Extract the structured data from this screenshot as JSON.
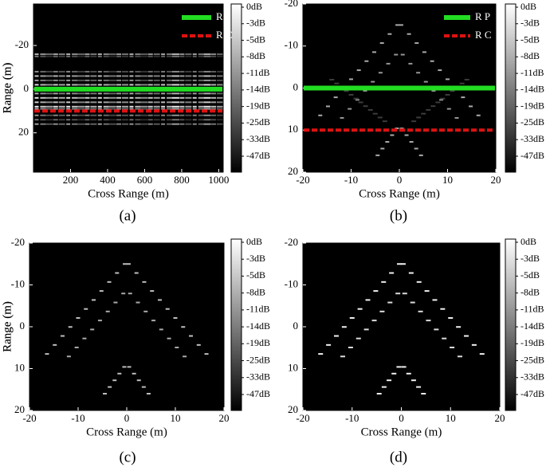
{
  "chart_data": [
    {
      "type": "image",
      "caption": "(a)",
      "x_label": "Cross Range (m)",
      "y_label": "Range (m)",
      "xlim": [
        0,
        1024
      ],
      "xticks": [
        200,
        400,
        600,
        800,
        1000
      ],
      "ylim": [
        -39,
        38
      ],
      "yticks": [
        -20,
        0,
        20
      ],
      "y_inverted": true,
      "colorbar_labels": [
        "0dB",
        "-3dB",
        "-5dB",
        "-8dB",
        "-11dB",
        "-14dB",
        "-19dB",
        "-25dB",
        "-33dB",
        "-47dB"
      ],
      "reference_lines": [
        {
          "name": "R P",
          "value": 0,
          "color": "#22dd22",
          "style": "solid"
        },
        {
          "name": "R C",
          "value": 10,
          "color": "#dd1111",
          "style": "dashed"
        }
      ]
    },
    {
      "type": "image",
      "caption": "(b)",
      "x_label": "Cross Range (m)",
      "y_label": "Range (m)",
      "xlim": [
        -20,
        20
      ],
      "xticks": [
        -20,
        -10,
        0,
        10,
        20
      ],
      "ylim": [
        -20,
        20
      ],
      "yticks": [
        -20,
        -10,
        0,
        10,
        20
      ],
      "y_inverted": true,
      "colorbar_labels": [
        "0dB",
        "-3dB",
        "-5dB",
        "-8dB",
        "-11dB",
        "-14dB",
        "-19dB",
        "-25dB",
        "-33dB",
        "-47dB"
      ],
      "reference_lines": [
        {
          "name": "R P",
          "value": 0,
          "color": "#22dd22",
          "style": "solid"
        },
        {
          "name": "R C",
          "value": 10,
          "color": "#dd1111",
          "style": "dashed"
        }
      ]
    },
    {
      "type": "image",
      "caption": "(c)",
      "x_label": "Cross Range (m)",
      "y_label": "Range (m)",
      "xlim": [
        -20,
        20
      ],
      "xticks": [
        -20,
        -10,
        0,
        10,
        20
      ],
      "ylim": [
        -20,
        20
      ],
      "yticks": [
        -20,
        -10,
        0,
        10,
        20
      ],
      "y_inverted": true,
      "colorbar_labels": [
        "0dB",
        "-3dB",
        "-5dB",
        "-8dB",
        "-11dB",
        "-14dB",
        "-19dB",
        "-25dB",
        "-33dB",
        "-47dB"
      ]
    },
    {
      "type": "image",
      "caption": "(d)",
      "x_label": "Cross Range (m)",
      "y_label": "Range (m)",
      "xlim": [
        -20,
        20
      ],
      "xticks": [
        -20,
        -10,
        0,
        10,
        20
      ],
      "ylim": [
        -20,
        20
      ],
      "yticks": [
        -20,
        -10,
        0,
        10,
        20
      ],
      "y_inverted": true,
      "colorbar_labels": [
        "0dB",
        "-3dB",
        "-5dB",
        "-8dB",
        "-11dB",
        "-14dB",
        "-19dB",
        "-25dB",
        "-33dB",
        "-47dB"
      ]
    }
  ]
}
